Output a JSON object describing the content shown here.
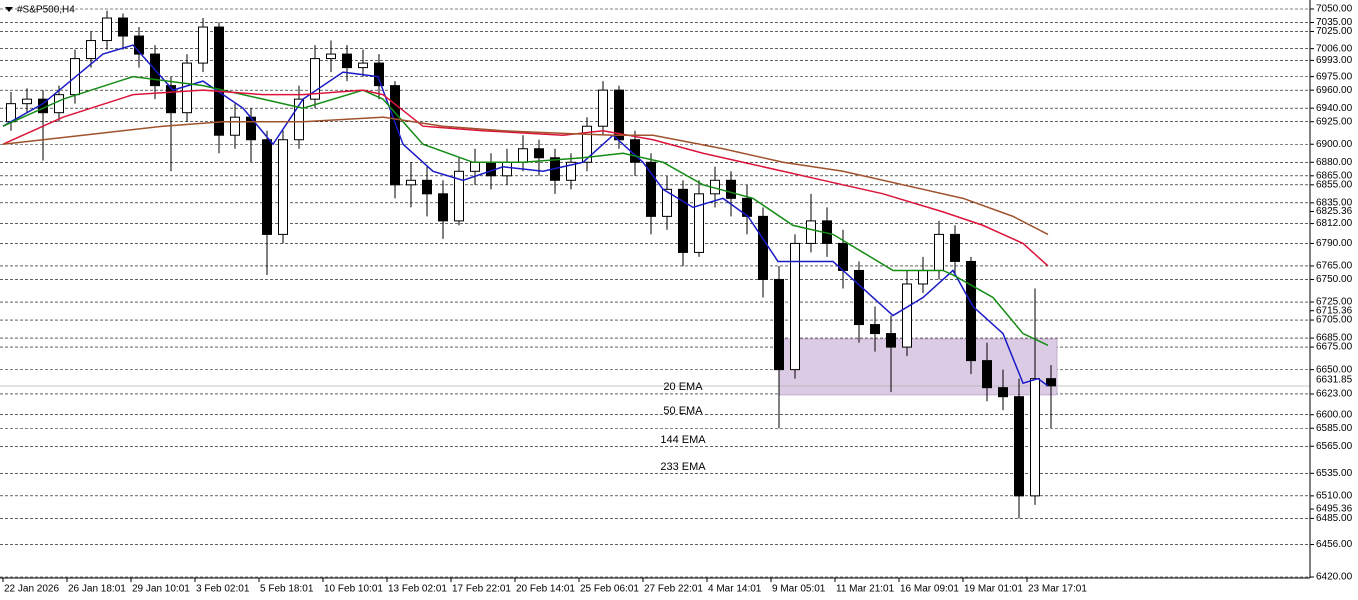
{
  "chart_data": {
    "type": "candlestick",
    "title": "#S&P500,H4",
    "grid": true,
    "candle_color": "#000000",
    "xlim": [
      -0.75,
      326.75
    ],
    "ylim": [
      6420,
      7050
    ],
    "xticks": [
      {
        "value": 0,
        "label": "22 Jan 2026"
      },
      {
        "value": 16,
        "label": "26 Jan 18:01"
      },
      {
        "value": 32,
        "label": "29 Jan 10:01"
      },
      {
        "value": 48,
        "label": "3 Feb 02:01"
      },
      {
        "value": 64,
        "label": "5 Feb 18:01"
      },
      {
        "value": 80,
        "label": "10 Feb 10:01"
      },
      {
        "value": 96,
        "label": "13 Feb 02:01"
      },
      {
        "value": 112,
        "label": "17 Feb 22:01"
      },
      {
        "value": 128,
        "label": "20 Feb 14:01"
      },
      {
        "value": 144,
        "label": "25 Feb 06:01"
      },
      {
        "value": 160,
        "label": "27 Feb 22:01"
      },
      {
        "value": 176,
        "label": "4 Mar 14:01"
      },
      {
        "value": 192,
        "label": "9 Mar 05:01"
      },
      {
        "value": 208,
        "label": "11 Mar 21:01"
      },
      {
        "value": 224,
        "label": "16 Mar 09:01"
      },
      {
        "value": 240,
        "label": "19 Mar 01:01"
      },
      {
        "value": 256,
        "label": "23 Mar 17:01"
      }
    ],
    "yticks": [
      {
        "value": 7050,
        "label": "7050.00"
      },
      {
        "value": 7035,
        "label": "7035.00"
      },
      {
        "value": 7025,
        "label": "7025.00"
      },
      {
        "value": 7006,
        "label": "7006.00"
      },
      {
        "value": 6993,
        "label": "6993.00"
      },
      {
        "value": 6975,
        "label": "6975.00"
      },
      {
        "value": 6960,
        "label": "6960.00"
      },
      {
        "value": 6940,
        "label": "6940.00"
      },
      {
        "value": 6925,
        "label": "6925.00"
      },
      {
        "value": 6900,
        "label": "6900.00"
      },
      {
        "value": 6880,
        "label": "6880.00"
      },
      {
        "value": 6865,
        "label": "6865.00"
      },
      {
        "value": 6855,
        "label": "6855.00"
      },
      {
        "value": 6835,
        "label": "6835.00"
      },
      6825.36,
      {
        "value": 6812,
        "label": "6812.00"
      },
      {
        "value": 6790,
        "label": "6790.00"
      },
      {
        "value": 6765,
        "label": "6765.00"
      },
      {
        "value": 6750,
        "label": "6750.00"
      },
      {
        "value": 6725,
        "label": "6725.00"
      },
      6715.36,
      {
        "value": 6705,
        "label": "6705.00"
      },
      {
        "value": 6685,
        "label": "6685.00"
      },
      {
        "value": 6675,
        "label": "6675.00"
      },
      {
        "value": 6650,
        "label": "6650.00"
      },
      {
        "value": 6623,
        "label": "6623.00"
      },
      {
        "value": 6600,
        "label": "6600.00"
      },
      {
        "value": 6585,
        "label": "6585.00"
      },
      {
        "value": 6565,
        "label": "6565.00"
      },
      {
        "value": 6535,
        "label": "6535.00"
      },
      {
        "value": 6510,
        "label": "6510.00"
      },
      6495.36,
      {
        "value": 6485,
        "label": "6485.00"
      },
      {
        "value": 6456,
        "label": "6456.00"
      },
      {
        "value": 6420,
        "label": "6420.00"
      }
    ],
    "last_price": 6631.85,
    "zone": {
      "color": "#dccbe4",
      "x": [
        194,
        263.5
      ],
      "y": [
        6622,
        6684
      ]
    },
    "x": [
      2,
      6,
      10,
      14,
      18,
      22,
      26,
      30,
      34,
      38,
      42,
      46,
      50,
      54,
      58,
      62,
      66,
      70,
      74,
      78,
      82,
      86,
      90,
      94,
      98,
      102,
      106,
      110,
      114,
      118,
      122,
      126,
      130,
      134,
      138,
      142,
      146,
      150,
      154,
      158,
      162,
      166,
      170,
      174,
      178,
      182,
      186,
      190,
      194,
      198,
      202,
      206,
      210,
      214,
      218,
      222,
      226,
      230,
      234,
      238,
      242,
      246,
      250,
      254,
      258,
      262
    ],
    "open": [
      6925,
      6945,
      6950,
      6935,
      6955,
      6995,
      7015,
      7040,
      7020,
      7000,
      6965,
      6935,
      6990,
      7030,
      6910,
      6930,
      6905,
      6800,
      6905,
      6950,
      6995,
      7000,
      6985,
      6990,
      6965,
      6855,
      6860,
      6845,
      6815,
      6870,
      6880,
      6865,
      6880,
      6895,
      6885,
      6860,
      6880,
      6920,
      6960,
      6905,
      6880,
      6820,
      6850,
      6780,
      6845,
      6860,
      6840,
      6820,
      6750,
      6650,
      6790,
      6815,
      6790,
      6760,
      6700,
      6690,
      6675,
      6745,
      6760,
      6800,
      6770,
      6660,
      6630,
      6620,
      6510,
      6640
    ],
    "high": [
      6958,
      6962,
      6960,
      6965,
      7005,
      7025,
      7048,
      7045,
      7030,
      7010,
      6975,
      7000,
      7040,
      7035,
      6945,
      6940,
      6915,
      6915,
      6965,
      7010,
      7015,
      7010,
      7005,
      7000,
      6970,
      6880,
      6875,
      6860,
      6885,
      6895,
      6890,
      6895,
      6910,
      6905,
      6895,
      6890,
      6930,
      6970,
      6965,
      6915,
      6890,
      6865,
      6860,
      6860,
      6875,
      6870,
      6855,
      6830,
      6765,
      6800,
      6845,
      6830,
      6805,
      6770,
      6720,
      6710,
      6760,
      6775,
      6815,
      6810,
      6775,
      6680,
      6650,
      6640,
      6740,
      6655
    ],
    "low": [
      6915,
      6935,
      6882,
      6925,
      6945,
      6985,
      7005,
      7005,
      6985,
      6950,
      6870,
      6925,
      6980,
      6890,
      6895,
      6880,
      6755,
      6790,
      6895,
      6940,
      6980,
      6970,
      6975,
      6950,
      6840,
      6830,
      6820,
      6795,
      6810,
      6855,
      6850,
      6855,
      6870,
      6865,
      6845,
      6850,
      6870,
      6910,
      6895,
      6865,
      6800,
      6805,
      6765,
      6775,
      6830,
      6820,
      6800,
      6730,
      6585,
      6640,
      6780,
      6775,
      6740,
      6680,
      6670,
      6625,
      6665,
      6735,
      6750,
      6755,
      6645,
      6615,
      6605,
      6485,
      6500,
      6585
    ],
    "close": [
      6945,
      6950,
      6935,
      6955,
      6995,
      7015,
      7040,
      7020,
      7000,
      6965,
      6935,
      6990,
      7030,
      6910,
      6930,
      6905,
      6800,
      6905,
      6950,
      6995,
      7000,
      6985,
      6990,
      6965,
      6855,
      6860,
      6845,
      6815,
      6870,
      6880,
      6865,
      6880,
      6895,
      6885,
      6860,
      6880,
      6920,
      6960,
      6905,
      6880,
      6820,
      6850,
      6780,
      6845,
      6860,
      6840,
      6820,
      6750,
      6650,
      6790,
      6815,
      6790,
      6760,
      6700,
      6690,
      6675,
      6745,
      6760,
      6800,
      6770,
      6660,
      6630,
      6620,
      6510,
      6640,
      6632
    ],
    "series": [
      {
        "name": "20 EMA",
        "color": "#1a1ac8",
        "x": [
          0,
          10,
          25,
          32.5,
          42.5,
          50,
          60,
          67.5,
          75,
          85,
          93.75,
          100,
          107.5,
          115,
          125,
          135,
          145,
          152.5,
          160,
          165,
          172.5,
          180,
          186.25,
          193.75,
          200,
          207.5,
          215,
          222.5,
          230,
          237.5,
          242.5,
          250,
          255,
          258.75,
          261.25
        ],
        "values": [
          6920,
          6945,
          7000,
          7010,
          6960,
          6970,
          6940,
          6900,
          6950,
          6980,
          6975,
          6900,
          6870,
          6860,
          6875,
          6870,
          6880,
          6910,
          6880,
          6850,
          6830,
          6840,
          6820,
          6770,
          6770,
          6770,
          6740,
          6710,
          6730,
          6760,
          6720,
          6690,
          6635,
          6640,
          6632
        ]
      },
      {
        "name": "50 EMA",
        "color": "#148c14",
        "x": [
          0,
          15,
          32.5,
          50,
          65,
          75,
          90,
          95,
          105,
          117.5,
          130,
          145,
          155,
          165,
          175,
          187.5,
          197.5,
          207.5,
          215,
          222.5,
          235,
          237.5,
          247.5,
          255,
          261.25
        ],
        "values": [
          6920,
          6950,
          6975,
          6965,
          6950,
          6940,
          6960,
          6950,
          6900,
          6880,
          6880,
          6885,
          6890,
          6880,
          6855,
          6840,
          6810,
          6800,
          6780,
          6760,
          6760,
          6755,
          6730,
          6690,
          6677
        ]
      },
      {
        "name": "144 EMA",
        "color": "#dc143c",
        "x": [
          0,
          15,
          32.5,
          50,
          65,
          75,
          90,
          95,
          105,
          120,
          140,
          150,
          162.5,
          175,
          185,
          195,
          205,
          220,
          235,
          245,
          255,
          261.25
        ],
        "values": [
          6900,
          6930,
          6955,
          6960,
          6955,
          6955,
          6960,
          6955,
          6920,
          6915,
          6910,
          6915,
          6905,
          6890,
          6880,
          6870,
          6860,
          6845,
          6825,
          6810,
          6790,
          6765
        ]
      },
      {
        "name": "233 EMA",
        "color": "#a0522d",
        "x": [
          0,
          20,
          40,
          55,
          75,
          95,
          110,
          125,
          140,
          152.5,
          162.5,
          180,
          195,
          210,
          225,
          240,
          252.5,
          261.25
        ],
        "values": [
          6900,
          6910,
          6920,
          6925,
          6925,
          6930,
          6920,
          6915,
          6912,
          6910,
          6910,
          6895,
          6880,
          6870,
          6855,
          6840,
          6820,
          6800
        ]
      }
    ]
  }
}
